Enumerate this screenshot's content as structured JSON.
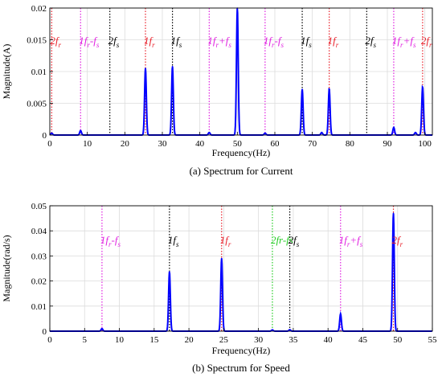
{
  "chart_data": [
    {
      "type": "line",
      "caption": "(a) Spectrum for Current",
      "xlabel": "Frequency(Hz)",
      "ylabel": "Magnitude(A)",
      "xlim": [
        0,
        102
      ],
      "ylim": [
        0,
        0.02
      ],
      "xticks": [
        "0",
        "10",
        "20",
        "30",
        "40",
        "50",
        "60",
        "70",
        "80",
        "90",
        "100"
      ],
      "yticks": [
        "0",
        "0.005",
        "0.01",
        "0.015",
        "0.02"
      ],
      "grid": true,
      "series_color": "#0000ff",
      "peaks": [
        {
          "x": 0.5,
          "y": 0.0003
        },
        {
          "x": 8.2,
          "y": 0.0007
        },
        {
          "x": 25.5,
          "y": 0.0105
        },
        {
          "x": 32.7,
          "y": 0.0108
        },
        {
          "x": 42.5,
          "y": 0.0004
        },
        {
          "x": 50.0,
          "y": 0.02
        },
        {
          "x": 57.4,
          "y": 0.0003
        },
        {
          "x": 67.3,
          "y": 0.0072
        },
        {
          "x": 72.5,
          "y": 0.0004
        },
        {
          "x": 74.5,
          "y": 0.0073
        },
        {
          "x": 91.7,
          "y": 0.0012
        },
        {
          "x": 97.5,
          "y": 0.0004
        },
        {
          "x": 99.4,
          "y": 0.0076
        }
      ],
      "annotations": [
        {
          "x": 0.5,
          "text": "2f",
          "sub": "r",
          "color": "#e8202a"
        },
        {
          "x": 8.2,
          "text": "1f",
          "sub": "r",
          "text2": "-f",
          "sub2": "s",
          "color": "#e020e0"
        },
        {
          "x": 16.0,
          "text": "2f",
          "sub": "s",
          "color": "#000000"
        },
        {
          "x": 25.5,
          "text": "1f",
          "sub": "r",
          "color": "#e8202a"
        },
        {
          "x": 32.7,
          "text": "1f",
          "sub": "s",
          "color": "#000000"
        },
        {
          "x": 42.5,
          "text": "1f",
          "sub": "r",
          "text2": "+f",
          "sub2": "s",
          "color": "#e020e0"
        },
        {
          "x": 57.4,
          "text": "1f",
          "sub": "r",
          "text2": "-f",
          "sub2": "s",
          "color": "#e020e0"
        },
        {
          "x": 67.3,
          "text": "1f",
          "sub": "s",
          "color": "#000000"
        },
        {
          "x": 74.5,
          "text": "1f",
          "sub": "r",
          "color": "#e8202a"
        },
        {
          "x": 84.5,
          "text": "2f",
          "sub": "s",
          "color": "#000000"
        },
        {
          "x": 91.7,
          "text": "1f",
          "sub": "r",
          "text2": "+f",
          "sub2": "s",
          "color": "#e020e0"
        },
        {
          "x": 99.4,
          "text": "2f",
          "sub": "r",
          "color": "#e8202a"
        }
      ]
    },
    {
      "type": "line",
      "caption": "(b) Spectrum for Speed",
      "xlabel": "Frequency(Hz)",
      "ylabel": "Magnitude(rad/s)",
      "xlim": [
        0,
        55
      ],
      "ylim": [
        0,
        0.05
      ],
      "xticks": [
        "0",
        "5",
        "10",
        "15",
        "20",
        "25",
        "30",
        "35",
        "40",
        "45",
        "50",
        "55"
      ],
      "yticks": [
        "0",
        "0.01",
        "0.02",
        "0.03",
        "0.04",
        "0.05"
      ],
      "grid": true,
      "series_color": "#0000ff",
      "peaks": [
        {
          "x": 7.5,
          "y": 0.001
        },
        {
          "x": 17.2,
          "y": 0.0237
        },
        {
          "x": 24.7,
          "y": 0.029
        },
        {
          "x": 32.0,
          "y": 0.0005
        },
        {
          "x": 34.5,
          "y": 0.0006
        },
        {
          "x": 41.8,
          "y": 0.0069
        },
        {
          "x": 49.4,
          "y": 0.047
        }
      ],
      "annotations": [
        {
          "x": 7.5,
          "text": "1f",
          "sub": "r",
          "text2": "-f",
          "sub2": "s",
          "color": "#e020e0"
        },
        {
          "x": 17.2,
          "text": "1f",
          "sub": "s",
          "color": "#000000"
        },
        {
          "x": 24.7,
          "text": "1f",
          "sub": "r",
          "color": "#e8202a"
        },
        {
          "x": 32.0,
          "text": "2fr-fs",
          "color": "#22cc22"
        },
        {
          "x": 34.5,
          "text": "2f",
          "sub": "s",
          "color": "#000000"
        },
        {
          "x": 41.8,
          "text": "1f",
          "sub": "r",
          "text2": "+f",
          "sub2": "s",
          "color": "#e020e0"
        },
        {
          "x": 49.4,
          "text": "2f",
          "sub": "r",
          "color": "#e8202a"
        }
      ]
    }
  ]
}
